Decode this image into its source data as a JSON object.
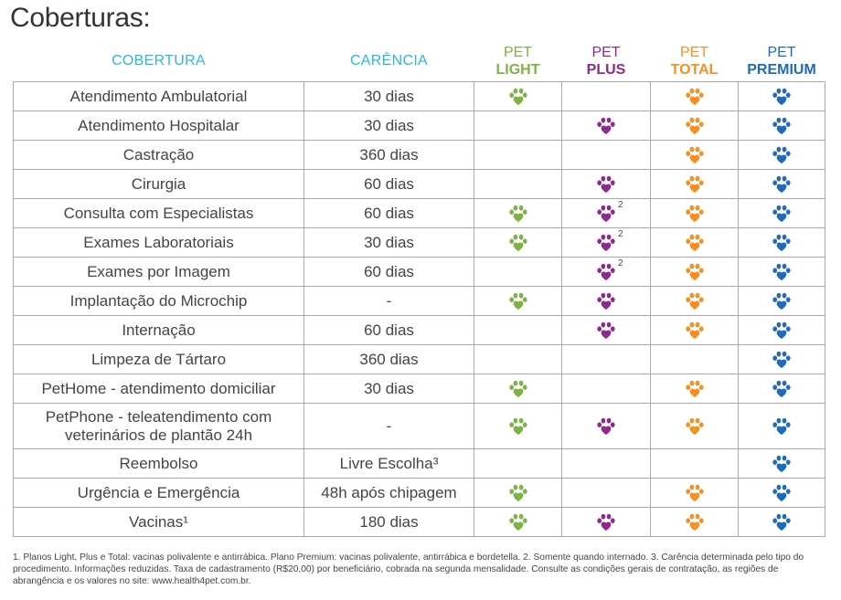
{
  "page": {
    "title": "Coberturas:"
  },
  "headers": {
    "cobertura": "COBERTURA",
    "carencia": "CARÊNCIA",
    "plans": [
      {
        "line1": "PET",
        "line2": "LIGHT",
        "color": "#7cb342"
      },
      {
        "line1": "PET",
        "line2": "PLUS",
        "color": "#8e2a8e"
      },
      {
        "line1": "PET",
        "line2": "TOTAL",
        "color": "#f39122"
      },
      {
        "line1": "PET",
        "line2": "PREMIUM",
        "color": "#1e6bb8"
      }
    ]
  },
  "icon": "paw-icon",
  "rows": [
    {
      "cobertura": "Atendimento Ambulatorial",
      "carencia": "30 dias",
      "light": true,
      "plus": false,
      "total": true,
      "premium": true,
      "plus_note": ""
    },
    {
      "cobertura": "Atendimento Hospitalar",
      "carencia": "30 dias",
      "light": false,
      "plus": true,
      "total": true,
      "premium": true,
      "plus_note": ""
    },
    {
      "cobertura": "Castração",
      "carencia": "360 dias",
      "light": false,
      "plus": false,
      "total": true,
      "premium": true,
      "plus_note": ""
    },
    {
      "cobertura": "Cirurgia",
      "carencia": "60 dias",
      "light": false,
      "plus": true,
      "total": true,
      "premium": true,
      "plus_note": ""
    },
    {
      "cobertura": "Consulta com Especialistas",
      "carencia": "60 dias",
      "light": true,
      "plus": true,
      "total": true,
      "premium": true,
      "plus_note": "2"
    },
    {
      "cobertura": "Exames Laboratoriais",
      "carencia": "30 dias",
      "light": true,
      "plus": true,
      "total": true,
      "premium": true,
      "plus_note": "2"
    },
    {
      "cobertura": "Exames por Imagem",
      "carencia": "60 dias",
      "light": false,
      "plus": true,
      "total": true,
      "premium": true,
      "plus_note": "2"
    },
    {
      "cobertura": "Implantação do Microchip",
      "carencia": "-",
      "light": true,
      "plus": true,
      "total": true,
      "premium": true,
      "plus_note": ""
    },
    {
      "cobertura": "Internação",
      "carencia": "60 dias",
      "light": false,
      "plus": true,
      "total": true,
      "premium": true,
      "plus_note": ""
    },
    {
      "cobertura": "Limpeza de Tártaro",
      "carencia": "360 dias",
      "light": false,
      "plus": false,
      "total": false,
      "premium": true,
      "plus_note": ""
    },
    {
      "cobertura": "PetHome - atendimento domiciliar",
      "carencia": "30 dias",
      "light": true,
      "plus": false,
      "total": true,
      "premium": true,
      "plus_note": ""
    },
    {
      "cobertura": "PetPhone - teleatendimento com veterinários de plantão 24h",
      "carencia": "-",
      "light": true,
      "plus": true,
      "total": true,
      "premium": true,
      "plus_note": "",
      "tall": true
    },
    {
      "cobertura": "Reembolso",
      "carencia": "Livre Escolha³",
      "light": false,
      "plus": false,
      "total": false,
      "premium": true,
      "plus_note": ""
    },
    {
      "cobertura": "Urgência e Emergência",
      "carencia": "48h após chipagem",
      "light": true,
      "plus": false,
      "total": true,
      "premium": true,
      "plus_note": ""
    },
    {
      "cobertura": "Vacinas¹",
      "carencia": "180 dias",
      "light": true,
      "plus": true,
      "total": true,
      "premium": true,
      "plus_note": ""
    }
  ],
  "footnote": "1. Planos Light, Plus e Total: vacinas polivalente e antirrábica. Plano Premium: vacinas polivalente, antirrábica e bordetella. 2. Somente quando internado. 3. Carência determinada pelo tipo do procedimento. Informações reduzidas. Taxa de cadastramento (R$20,00) por beneficiário, cobrada na segunda mensalidade. Consulte as condições gerais de contratação, as regiões de abrangência e os valores no site: www.health4pet.com.br."
}
